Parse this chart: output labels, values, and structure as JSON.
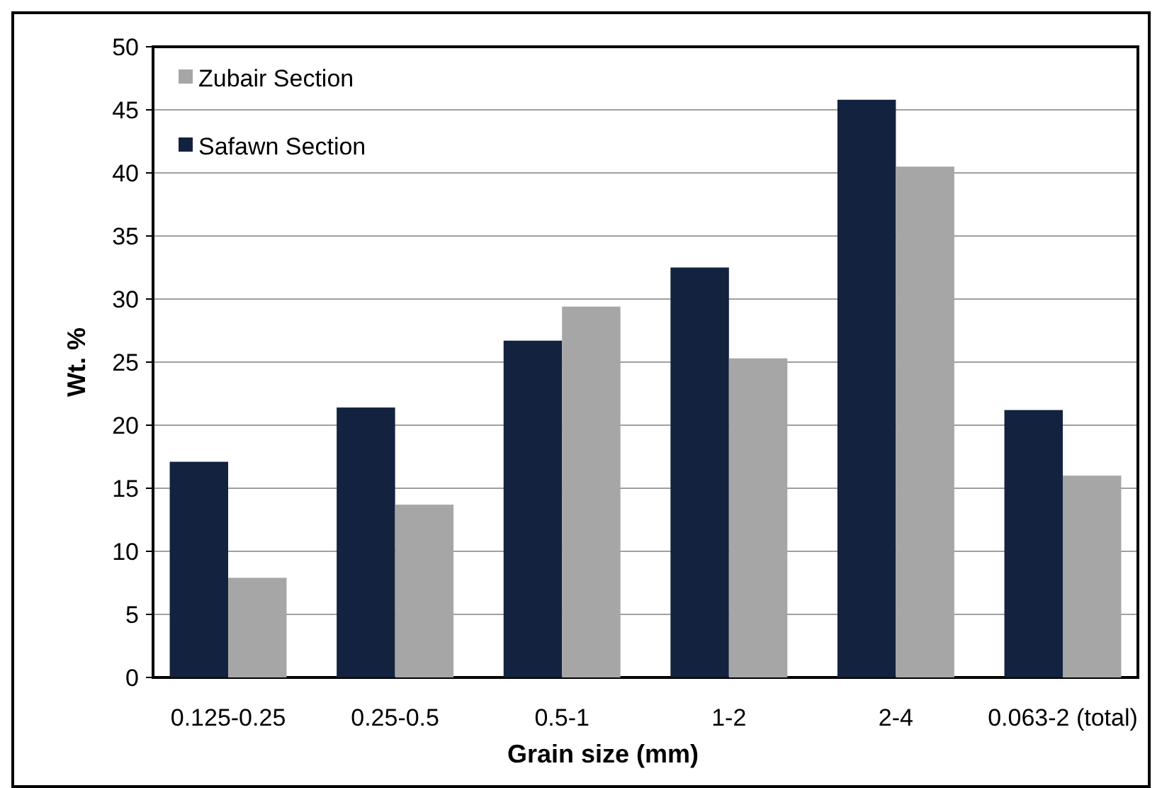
{
  "chart_data": {
    "type": "bar",
    "xlabel": "Grain size (mm)",
    "ylabel": "Wt. %",
    "categories": [
      "0.125-0.25",
      "0.25-0.5",
      "0.5-1",
      "1-2",
      "2-4",
      "0.063-2 (total)"
    ],
    "series": [
      {
        "name": "Safawn Section",
        "color": "#12223f",
        "values": [
          17.1,
          21.4,
          26.7,
          32.5,
          45.8,
          21.2
        ]
      },
      {
        "name": "Zubair Section",
        "color": "#a6a6a6",
        "values": [
          7.9,
          13.7,
          29.4,
          25.3,
          40.5,
          16.0
        ]
      }
    ],
    "ylim": [
      0,
      50
    ],
    "yticks": [
      0,
      5,
      10,
      15,
      20,
      25,
      30,
      35,
      40,
      45,
      50
    ],
    "grid": "y",
    "legend": "top left"
  }
}
